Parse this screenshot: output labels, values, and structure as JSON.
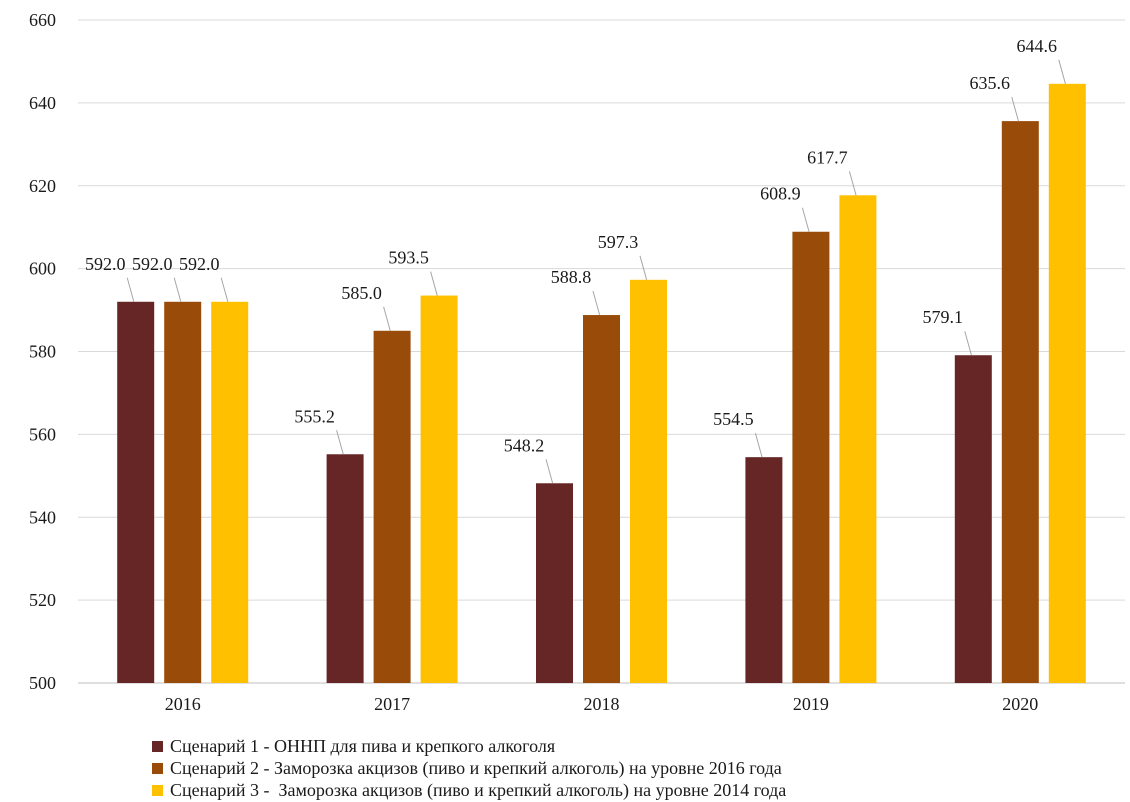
{
  "chart_data": {
    "type": "bar",
    "categories": [
      "2016",
      "2017",
      "2018",
      "2019",
      "2020"
    ],
    "series": [
      {
        "name": "Сценарий 1 - ОННП для пива и крепкого алкоголя",
        "color": "#662626",
        "values": [
          592.0,
          555.2,
          548.2,
          554.5,
          579.1
        ],
        "labels": [
          "592.0",
          "555.2",
          "548.2",
          "554.5",
          "579.1"
        ]
      },
      {
        "name": "Сценарий 2 - Заморозка акцизов (пиво и крепкий алкоголь) на уровне 2016 года",
        "color": "#994c09",
        "values": [
          592.0,
          585.0,
          588.8,
          608.9,
          635.6
        ],
        "labels": [
          "592.0",
          "585.0",
          "588.8",
          "608.9",
          "635.6"
        ]
      },
      {
        "name": "Сценарий 3 -  Заморозка акцизов (пиво и крепкий алкоголь) на уровне 2014 года",
        "color": "#ffc000",
        "values": [
          592.0,
          593.5,
          597.3,
          617.7,
          644.6
        ],
        "labels": [
          "592.0",
          "593.5",
          "597.3",
          "617.7",
          "644.6"
        ]
      }
    ],
    "ylim": [
      500,
      660
    ],
    "yticks": [
      "500",
      "520",
      "540",
      "560",
      "580",
      "600",
      "620",
      "640",
      "660"
    ],
    "grid": true,
    "legend_position": "bottom",
    "title": "",
    "xlabel": "",
    "ylabel": ""
  }
}
